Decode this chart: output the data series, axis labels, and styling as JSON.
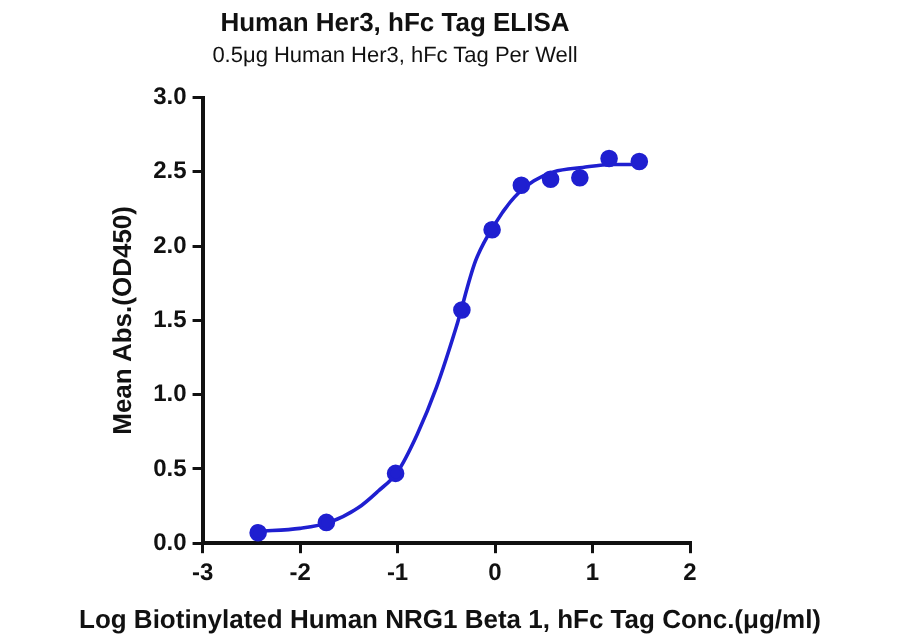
{
  "chart_data": {
    "type": "scatter",
    "title": "Human Her3, hFc Tag ELISA",
    "subtitle": "0.5μg Human Her3, hFc Tag Per Well",
    "xlabel": "Log Biotinylated Human NRG1 Beta 1, hFc Tag Conc.(μg/ml)",
    "ylabel": "Mean Abs.(OD450)",
    "x": [
      -2.43,
      -1.73,
      -1.02,
      -0.34,
      -0.03,
      0.27,
      0.57,
      0.87,
      1.17,
      1.48
    ],
    "series": [
      {
        "type": "scatter",
        "color": "#1f1fd0",
        "marker": "circle",
        "values": [
          0.07,
          0.14,
          0.47,
          1.57,
          2.11,
          2.41,
          2.45,
          2.46,
          2.59,
          2.57
        ]
      },
      {
        "type": "line",
        "color": "#1f1fd0",
        "marker": "none",
        "x": [
          -2.43,
          -2,
          -1.7,
          -1.4,
          -1.2,
          -1,
          -0.8,
          -0.6,
          -0.4,
          -0.2,
          0,
          0.2,
          0.4,
          0.6,
          0.9,
          1.2,
          1.48
        ],
        "values": [
          0.08,
          0.1,
          0.14,
          0.24,
          0.35,
          0.48,
          0.73,
          1.05,
          1.45,
          1.9,
          2.15,
          2.33,
          2.44,
          2.5,
          2.53,
          2.55,
          2.55
        ]
      }
    ],
    "xlim": [
      -3,
      2
    ],
    "xticks": [
      -3,
      -2,
      -1,
      0,
      1,
      2
    ],
    "ylim": [
      0,
      3
    ],
    "yticks": [
      {
        "value": 0,
        "label": "0.0"
      },
      {
        "value": 0.5,
        "label": "0.5"
      },
      {
        "value": 1,
        "label": "1.0"
      },
      {
        "value": 1.5,
        "label": "1.5"
      },
      {
        "value": 2,
        "label": "2.0"
      },
      {
        "value": 2.5,
        "label": "2.5"
      },
      {
        "value": 3,
        "label": "3.0"
      }
    ],
    "grid": false,
    "legend": false
  }
}
